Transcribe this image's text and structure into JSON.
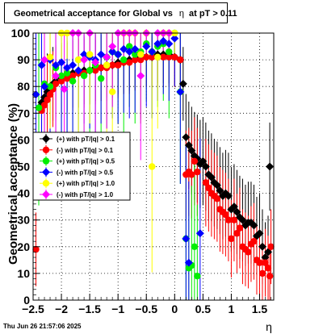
{
  "chart_data": {
    "type": "scatter",
    "title_prefix": "Geometrical acceptance for Global vs",
    "title_eta": "η",
    "title_suffix": "at pT > 0.11",
    "xlabel": "η",
    "ylabel": "Geometrical acceptance (%)",
    "xlim": [
      -2.5,
      1.75
    ],
    "ylim": [
      0,
      100
    ],
    "xticks": [
      -2.5,
      -2,
      -1.5,
      -1,
      -0.5,
      0,
      0.5,
      1,
      1.5
    ],
    "xtick_labels": [
      "−2.5",
      "−2",
      "−1.5",
      "−1",
      "−0.5",
      "0",
      "0.5",
      "1",
      "1.5"
    ],
    "yticks": [
      0,
      10,
      20,
      30,
      40,
      50,
      60,
      70,
      80,
      90,
      100
    ],
    "ytick_labels": [
      "0",
      "10",
      "20",
      "30",
      "40",
      "50",
      "60",
      "70",
      "80",
      "90",
      "100"
    ],
    "grid": true,
    "legend_position": "left-middle",
    "series": [
      {
        "name": "(+) with pT/|q| > 0.1",
        "color": "#000000",
        "points": [
          [
            -2.4,
            72
          ],
          [
            -2.35,
            74
          ],
          [
            -2.3,
            76
          ],
          [
            -2.25,
            78
          ],
          [
            -2.2,
            80
          ],
          [
            -2.15,
            81
          ],
          [
            -2.1,
            82
          ],
          [
            -2.0,
            83
          ],
          [
            -1.9,
            84
          ],
          [
            -1.8,
            85
          ],
          [
            -1.7,
            85
          ],
          [
            -1.6,
            86
          ],
          [
            -1.5,
            86
          ],
          [
            -1.4,
            87
          ],
          [
            -1.3,
            87
          ],
          [
            -1.2,
            88
          ],
          [
            -1.1,
            88
          ],
          [
            -1.0,
            89
          ],
          [
            -0.9,
            89
          ],
          [
            -0.8,
            90
          ],
          [
            -0.7,
            90
          ],
          [
            -0.6,
            91
          ],
          [
            -0.5,
            91
          ],
          [
            -0.4,
            91
          ],
          [
            -0.3,
            92
          ],
          [
            -0.2,
            92
          ],
          [
            -0.1,
            92
          ],
          [
            0.0,
            91
          ],
          [
            0.1,
            90
          ],
          [
            0.15,
            81
          ],
          [
            0.2,
            61
          ],
          [
            0.25,
            58
          ],
          [
            0.3,
            56
          ],
          [
            0.35,
            54
          ],
          [
            0.4,
            53
          ],
          [
            0.45,
            51
          ],
          [
            0.5,
            52
          ],
          [
            0.55,
            50
          ],
          [
            0.6,
            47
          ],
          [
            0.65,
            46
          ],
          [
            0.7,
            44
          ],
          [
            0.75,
            43
          ],
          [
            0.8,
            41
          ],
          [
            0.85,
            39
          ],
          [
            0.9,
            40
          ],
          [
            0.95,
            39
          ],
          [
            1.0,
            34
          ],
          [
            1.05,
            35
          ],
          [
            1.1,
            33
          ],
          [
            1.15,
            31
          ],
          [
            1.2,
            30
          ],
          [
            1.25,
            28
          ],
          [
            1.3,
            29
          ],
          [
            1.35,
            29
          ],
          [
            1.4,
            28
          ],
          [
            1.45,
            24
          ],
          [
            1.5,
            25
          ],
          [
            1.55,
            20
          ],
          [
            1.6,
            16
          ],
          [
            1.65,
            18
          ],
          [
            1.68,
            50
          ]
        ]
      },
      {
        "name": "(-) with pT/|q| > 0.1",
        "color": "#ff0000",
        "points": [
          [
            -2.45,
            19
          ],
          [
            -2.35,
            71
          ],
          [
            -2.3,
            73
          ],
          [
            -2.25,
            75
          ],
          [
            -2.2,
            77
          ],
          [
            -2.15,
            79
          ],
          [
            -2.1,
            81
          ],
          [
            -2.0,
            82
          ],
          [
            -1.9,
            83
          ],
          [
            -1.8,
            84
          ],
          [
            -1.7,
            85
          ],
          [
            -1.6,
            85
          ],
          [
            -1.5,
            86
          ],
          [
            -1.4,
            86
          ],
          [
            -1.3,
            87
          ],
          [
            -1.2,
            87
          ],
          [
            -1.1,
            88
          ],
          [
            -1.0,
            88
          ],
          [
            -0.9,
            89
          ],
          [
            -0.8,
            89
          ],
          [
            -0.7,
            90
          ],
          [
            -0.6,
            90
          ],
          [
            -0.5,
            91
          ],
          [
            -0.4,
            91
          ],
          [
            -0.3,
            91
          ],
          [
            -0.2,
            91
          ],
          [
            -0.1,
            91
          ],
          [
            0.0,
            91
          ],
          [
            0.1,
            90
          ],
          [
            0.2,
            47
          ],
          [
            0.25,
            48
          ],
          [
            0.3,
            47
          ],
          [
            0.35,
            52
          ],
          [
            0.4,
            48
          ],
          [
            0.55,
            44
          ],
          [
            0.6,
            42
          ],
          [
            0.65,
            40
          ],
          [
            0.7,
            39
          ],
          [
            0.75,
            38
          ],
          [
            0.8,
            34
          ],
          [
            0.85,
            33
          ],
          [
            0.9,
            32
          ],
          [
            0.95,
            30
          ],
          [
            1.0,
            23
          ],
          [
            1.05,
            30
          ],
          [
            1.1,
            25
          ],
          [
            1.15,
            27
          ],
          [
            1.2,
            20
          ],
          [
            1.25,
            19
          ],
          [
            1.3,
            18
          ],
          [
            1.35,
            21
          ],
          [
            1.4,
            22
          ],
          [
            1.45,
            15
          ],
          [
            1.5,
            14
          ],
          [
            1.55,
            10
          ],
          [
            1.6,
            14
          ],
          [
            1.65,
            12
          ],
          [
            1.68,
            9
          ],
          [
            1.7,
            20
          ]
        ]
      },
      {
        "name": "(+) with pT/|q| > 0.5",
        "color": "#00ee00",
        "points": [
          [
            -2.4,
            72
          ],
          [
            -2.3,
            81
          ],
          [
            -2.2,
            80
          ],
          [
            -2.1,
            87
          ],
          [
            -2.0,
            84
          ],
          [
            -1.9,
            85
          ],
          [
            -1.8,
            82
          ],
          [
            -1.7,
            90
          ],
          [
            -1.6,
            84
          ],
          [
            -1.5,
            86
          ],
          [
            -1.4,
            88
          ],
          [
            -1.3,
            83
          ],
          [
            -1.2,
            91
          ],
          [
            -1.1,
            93
          ],
          [
            -1.0,
            92
          ],
          [
            -0.9,
            90
          ],
          [
            -0.8,
            95
          ],
          [
            -0.7,
            92
          ],
          [
            -0.6,
            93
          ],
          [
            -0.5,
            96
          ],
          [
            -0.4,
            93
          ],
          [
            -0.3,
            95
          ],
          [
            -0.2,
            96
          ],
          [
            -0.1,
            93
          ],
          [
            0.0,
            100
          ],
          [
            0.1,
            78
          ],
          [
            0.2,
            23
          ],
          [
            0.25,
            12
          ],
          [
            0.3,
            13
          ],
          [
            0.35,
            20
          ],
          [
            0.4,
            9
          ]
        ]
      },
      {
        "name": "(-) with pT/|q| > 0.5",
        "color": "#0000ff",
        "points": [
          [
            -2.45,
            77
          ],
          [
            -2.35,
            88
          ],
          [
            -2.3,
            80
          ],
          [
            -2.2,
            90
          ],
          [
            -2.1,
            88
          ],
          [
            -2.0,
            89
          ],
          [
            -1.9,
            87
          ],
          [
            -1.8,
            88
          ],
          [
            -1.7,
            86
          ],
          [
            -1.6,
            92
          ],
          [
            -1.5,
            91
          ],
          [
            -1.4,
            90
          ],
          [
            -1.3,
            92
          ],
          [
            -1.2,
            91
          ],
          [
            -1.1,
            93
          ],
          [
            -1.0,
            92
          ],
          [
            -0.9,
            94
          ],
          [
            -0.8,
            93
          ],
          [
            -0.7,
            94
          ],
          [
            -0.6,
            92
          ],
          [
            -0.5,
            95
          ],
          [
            -0.4,
            93
          ],
          [
            -0.3,
            96
          ],
          [
            -0.2,
            97
          ],
          [
            -0.1,
            96
          ],
          [
            0.0,
            98
          ],
          [
            0.1,
            78
          ],
          [
            0.2,
            23
          ],
          [
            0.25,
            14
          ],
          [
            0.45,
            25
          ]
        ]
      },
      {
        "name": "(+) with pT/|q| > 1.0",
        "color": "#ffff00",
        "points": [
          [
            -2.2,
            91
          ],
          [
            -2.0,
            100
          ],
          [
            -1.9,
            100
          ],
          [
            -1.7,
            90
          ],
          [
            -1.5,
            92
          ],
          [
            -1.2,
            88
          ],
          [
            -1.1,
            78
          ],
          [
            -0.9,
            100
          ],
          [
            -0.8,
            100
          ],
          [
            -0.7,
            100
          ],
          [
            -0.6,
            92
          ],
          [
            -0.5,
            100
          ],
          [
            -0.4,
            50
          ],
          [
            -0.3,
            91
          ],
          [
            -0.2,
            100
          ],
          [
            -0.1,
            100
          ],
          [
            0.0,
            100
          ]
        ]
      },
      {
        "name": "(-) with pT/|q| > 1.0",
        "color": "#ff00ff",
        "points": [
          [
            -2.3,
            90
          ],
          [
            -2.1,
            84
          ],
          [
            -1.95,
            79
          ],
          [
            -1.8,
            100
          ],
          [
            -1.7,
            100
          ],
          [
            -1.6,
            90
          ],
          [
            -1.5,
            100
          ],
          [
            -1.4,
            89
          ],
          [
            -1.2,
            91
          ],
          [
            -1.1,
            95
          ],
          [
            -1.0,
            100
          ],
          [
            -0.9,
            100
          ],
          [
            -0.8,
            100
          ],
          [
            -0.7,
            100
          ],
          [
            -0.6,
            84
          ],
          [
            -0.5,
            100
          ],
          [
            -0.3,
            100
          ],
          [
            -0.2,
            100
          ],
          [
            -0.1,
            100
          ]
        ]
      }
    ]
  },
  "footer": {
    "timestamp": "Thu Jun 26 21:57:06 2025"
  }
}
